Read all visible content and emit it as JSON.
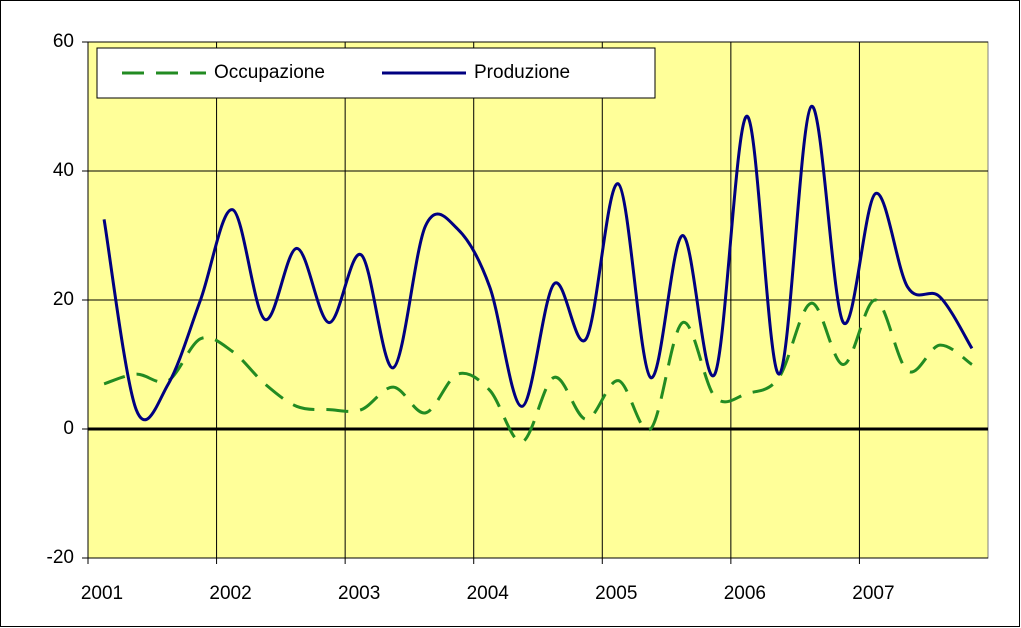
{
  "chart_data": {
    "type": "line",
    "x": [
      2001.125,
      2001.375,
      2001.625,
      2001.875,
      2002.125,
      2002.375,
      2002.625,
      2002.875,
      2003.125,
      2003.375,
      2003.625,
      2003.875,
      2004.125,
      2004.375,
      2004.625,
      2004.875,
      2005.125,
      2005.375,
      2005.625,
      2005.875,
      2006.125,
      2006.375,
      2006.625,
      2006.875,
      2007.125,
      2007.375,
      2007.625,
      2007.875
    ],
    "series": [
      {
        "name": "Occupazione",
        "color": "#228b22",
        "dashed": true,
        "values": [
          7,
          8.5,
          7.5,
          14,
          12,
          7,
          3.5,
          3,
          3,
          6.5,
          2.5,
          8.5,
          6,
          -2,
          8,
          1.5,
          7.5,
          0,
          16.5,
          5,
          5.5,
          8,
          19.5,
          10,
          20,
          9,
          13,
          10
        ]
      },
      {
        "name": "Produzione",
        "color": "#000080",
        "dashed": false,
        "values": [
          32.5,
          3,
          7,
          20,
          34,
          17,
          28,
          16.5,
          27,
          9.5,
          31.5,
          31,
          22,
          3.5,
          22.5,
          14,
          38,
          8,
          30,
          8.5,
          48.5,
          8.5,
          50,
          16.5,
          36.5,
          22,
          20.5,
          12.5
        ]
      }
    ],
    "xlim": [
      2001,
      2008
    ],
    "xticks": [
      2001,
      2002,
      2003,
      2004,
      2005,
      2006,
      2007
    ],
    "ylim": [
      -20,
      60
    ],
    "yticks": [
      -20,
      0,
      20,
      40,
      60
    ],
    "grid": true,
    "legend": "top-left",
    "background": "#ffff99"
  }
}
